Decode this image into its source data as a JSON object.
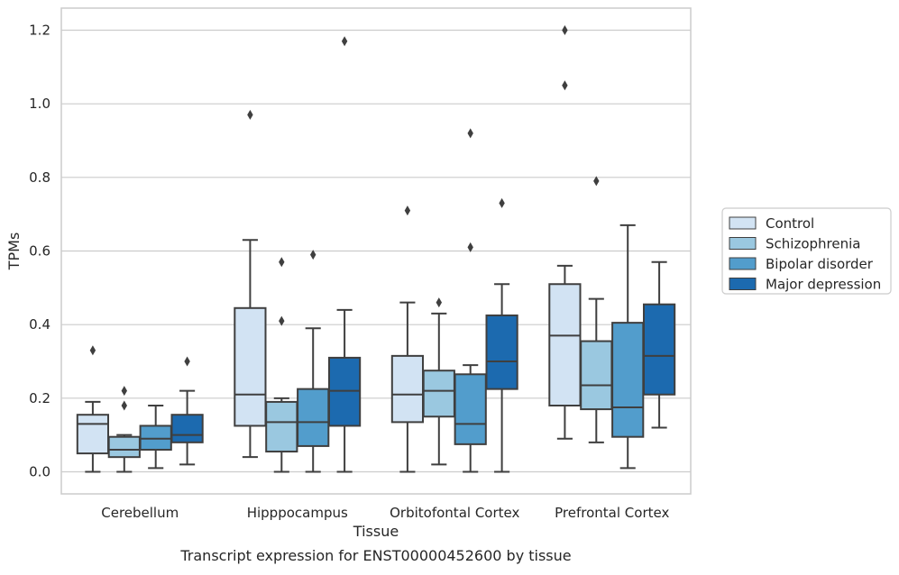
{
  "chart_data": {
    "type": "box",
    "caption": "Transcript expression for ENST00000452600 by tissue",
    "xlabel": "Tissue",
    "ylabel": "TPMs",
    "ylim": [
      -0.06,
      1.26
    ],
    "yticks": [
      0.0,
      0.2,
      0.4,
      0.6,
      0.8,
      1.0,
      1.2
    ],
    "ytick_labels": [
      "0.0",
      "0.2",
      "0.4",
      "0.6",
      "0.8",
      "1.0",
      "1.2"
    ],
    "grid": "horizontal",
    "legend_position": "right",
    "categories": [
      "Cerebellum",
      "Hipppocampus",
      "Orbitofontal Cortex",
      "Prefrontal Cortex"
    ],
    "series": [
      {
        "name": "Control",
        "color": "#d2e3f3",
        "boxes": [
          {
            "whislo": 0.0,
            "q1": 0.05,
            "med": 0.13,
            "q3": 0.155,
            "whishi": 0.19,
            "fliers": [
              0.33
            ]
          },
          {
            "whislo": 0.04,
            "q1": 0.125,
            "med": 0.21,
            "q3": 0.445,
            "whishi": 0.63,
            "fliers": [
              0.97
            ]
          },
          {
            "whislo": 0.0,
            "q1": 0.135,
            "med": 0.21,
            "q3": 0.315,
            "whishi": 0.46,
            "fliers": [
              0.71
            ]
          },
          {
            "whislo": 0.09,
            "q1": 0.18,
            "med": 0.37,
            "q3": 0.51,
            "whishi": 0.56,
            "fliers": [
              1.05,
              1.2
            ]
          }
        ]
      },
      {
        "name": "Schizophrenia",
        "color": "#9ac8e0",
        "boxes": [
          {
            "whislo": 0.0,
            "q1": 0.04,
            "med": 0.06,
            "q3": 0.095,
            "whishi": 0.1,
            "fliers": [
              0.18,
              0.22
            ]
          },
          {
            "whislo": 0.0,
            "q1": 0.055,
            "med": 0.135,
            "q3": 0.19,
            "whishi": 0.2,
            "fliers": [
              0.41,
              0.57
            ]
          },
          {
            "whislo": 0.02,
            "q1": 0.15,
            "med": 0.22,
            "q3": 0.275,
            "whishi": 0.43,
            "fliers": [
              0.46
            ]
          },
          {
            "whislo": 0.08,
            "q1": 0.17,
            "med": 0.235,
            "q3": 0.355,
            "whishi": 0.47,
            "fliers": [
              0.79
            ]
          }
        ]
      },
      {
        "name": "Bipolar disorder",
        "color": "#529dcc",
        "boxes": [
          {
            "whislo": 0.01,
            "q1": 0.06,
            "med": 0.09,
            "q3": 0.125,
            "whishi": 0.18,
            "fliers": []
          },
          {
            "whislo": 0.0,
            "q1": 0.07,
            "med": 0.135,
            "q3": 0.225,
            "whishi": 0.39,
            "fliers": [
              0.59
            ]
          },
          {
            "whislo": 0.0,
            "q1": 0.075,
            "med": 0.13,
            "q3": 0.265,
            "whishi": 0.29,
            "fliers": [
              0.61,
              0.92
            ]
          },
          {
            "whislo": 0.01,
            "q1": 0.095,
            "med": 0.175,
            "q3": 0.405,
            "whishi": 0.67,
            "fliers": []
          }
        ]
      },
      {
        "name": "Major depression",
        "color": "#1c6aaf",
        "boxes": [
          {
            "whislo": 0.02,
            "q1": 0.08,
            "med": 0.1,
            "q3": 0.155,
            "whishi": 0.22,
            "fliers": [
              0.3
            ]
          },
          {
            "whislo": 0.0,
            "q1": 0.125,
            "med": 0.22,
            "q3": 0.31,
            "whishi": 0.44,
            "fliers": [
              1.17
            ]
          },
          {
            "whislo": 0.0,
            "q1": 0.225,
            "med": 0.3,
            "q3": 0.425,
            "whishi": 0.51,
            "fliers": [
              0.73
            ]
          },
          {
            "whislo": 0.12,
            "q1": 0.21,
            "med": 0.315,
            "q3": 0.455,
            "whishi": 0.57,
            "fliers": []
          }
        ]
      }
    ]
  }
}
